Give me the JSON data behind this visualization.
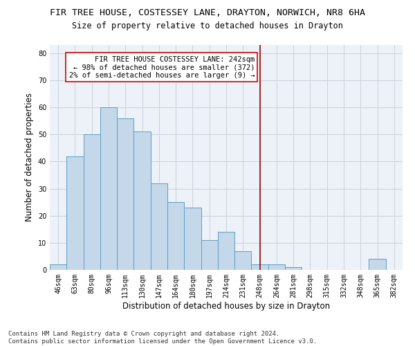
{
  "title": "FIR TREE HOUSE, COSTESSEY LANE, DRAYTON, NORWICH, NR8 6HA",
  "subtitle": "Size of property relative to detached houses in Drayton",
  "xlabel": "Distribution of detached houses by size in Drayton",
  "ylabel": "Number of detached properties",
  "categories": [
    "46sqm",
    "63sqm",
    "80sqm",
    "96sqm",
    "113sqm",
    "130sqm",
    "147sqm",
    "164sqm",
    "180sqm",
    "197sqm",
    "214sqm",
    "231sqm",
    "248sqm",
    "264sqm",
    "281sqm",
    "298sqm",
    "315sqm",
    "332sqm",
    "348sqm",
    "365sqm",
    "382sqm"
  ],
  "values": [
    2,
    42,
    50,
    60,
    56,
    51,
    32,
    25,
    23,
    11,
    14,
    7,
    2,
    2,
    1,
    0,
    0,
    0,
    0,
    4,
    0
  ],
  "bar_color": "#c5d8ea",
  "bar_edge_color": "#5a9ec8",
  "vline_x_index": 12,
  "vline_color": "#990000",
  "annotation_line1": "FIR TREE HOUSE COSTESSEY LANE: 242sqm",
  "annotation_line2": "← 98% of detached houses are smaller (372)",
  "annotation_line3": "2% of semi-detached houses are larger (9) →",
  "annotation_box_color": "#ffffff",
  "annotation_box_edge": "#cc0000",
  "ylim": [
    0,
    83
  ],
  "yticks": [
    0,
    10,
    20,
    30,
    40,
    50,
    60,
    70,
    80
  ],
  "grid_color": "#c8d2de",
  "bg_color": "#edf1f8",
  "footer": "Contains HM Land Registry data © Crown copyright and database right 2024.\nContains public sector information licensed under the Open Government Licence v3.0.",
  "title_fontsize": 9.5,
  "subtitle_fontsize": 8.5,
  "xlabel_fontsize": 8.5,
  "ylabel_fontsize": 8.5,
  "tick_fontsize": 7,
  "footer_fontsize": 6.5,
  "annot_fontsize": 7.5
}
